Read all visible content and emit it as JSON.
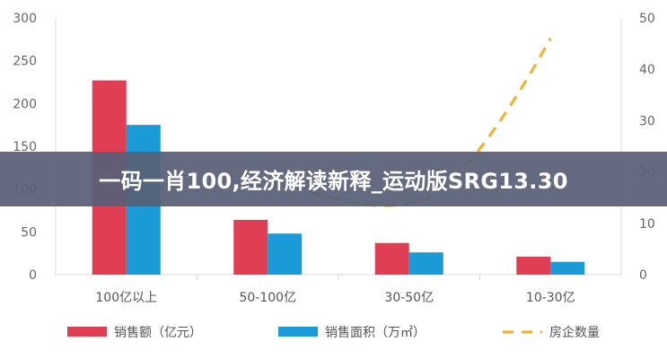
{
  "banner": {
    "text": "一码一肖100,经济解读新释_运动版SRG13.30"
  },
  "chart_data": {
    "type": "bar",
    "categories": [
      "100亿以上",
      "50-100亿",
      "30-50亿",
      "10-30亿"
    ],
    "series": [
      {
        "name": "销售额（亿元）",
        "type": "bar",
        "axis": "left",
        "color": "#e03e52",
        "values": [
          227,
          64,
          37,
          21
        ]
      },
      {
        "name": "销售面积（万㎡）",
        "type": "bar",
        "axis": "left",
        "color": "#1a9ad6",
        "values": [
          175,
          48,
          26,
          15
        ]
      },
      {
        "name": "房企数量",
        "type": "line",
        "style": "dashed",
        "axis": "right",
        "color": "#f2b233",
        "values": [
          null,
          null,
          14,
          46
        ]
      }
    ],
    "y_left": {
      "min": 0,
      "max": 300,
      "ticks": [
        "0",
        "50",
        "100",
        "150",
        "200",
        "250",
        "300"
      ]
    },
    "y_right": {
      "min": 0,
      "max": 50,
      "ticks": [
        "0",
        "10",
        "20",
        "30",
        "40",
        "50"
      ]
    },
    "legend_position": "bottom",
    "grid": false
  }
}
